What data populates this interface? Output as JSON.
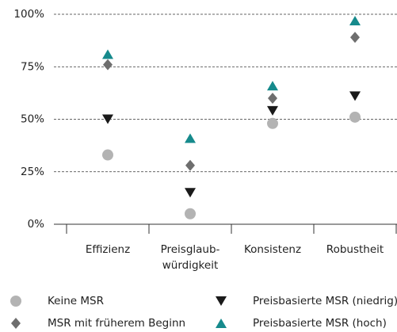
{
  "chart_data": {
    "type": "scatter",
    "categories": [
      "Effizienz",
      "Preisglaub-\nwürdigkeit",
      "Konsistenz",
      "Robustheit"
    ],
    "series": [
      {
        "name": "Keine MSR",
        "color": "#b3b3b3",
        "marker": "circle",
        "values": [
          33,
          5,
          48,
          51
        ]
      },
      {
        "name": "MSR mit früherem Beginn",
        "color": "#6e6e6e",
        "marker": "diamond",
        "values": [
          76,
          28,
          60,
          89
        ]
      },
      {
        "name": "Preisbasierte MSR (niedrig)",
        "color": "#1a1a1a",
        "marker": "triangle-down",
        "values": [
          50,
          15,
          54,
          61
        ]
      },
      {
        "name": "Preisbasierte MSR (hoch)",
        "color": "#168a8c",
        "marker": "triangle-up",
        "values": [
          81,
          41,
          66,
          97
        ]
      }
    ],
    "ylim": [
      0,
      100
    ],
    "yticks": [
      {
        "value": 0,
        "label": "0%"
      },
      {
        "value": 25,
        "label": "25%"
      },
      {
        "value": 50,
        "label": "50%"
      },
      {
        "value": 75,
        "label": "75%"
      },
      {
        "value": 100,
        "label": "100%"
      }
    ],
    "grid": true,
    "legend": "bottom"
  }
}
